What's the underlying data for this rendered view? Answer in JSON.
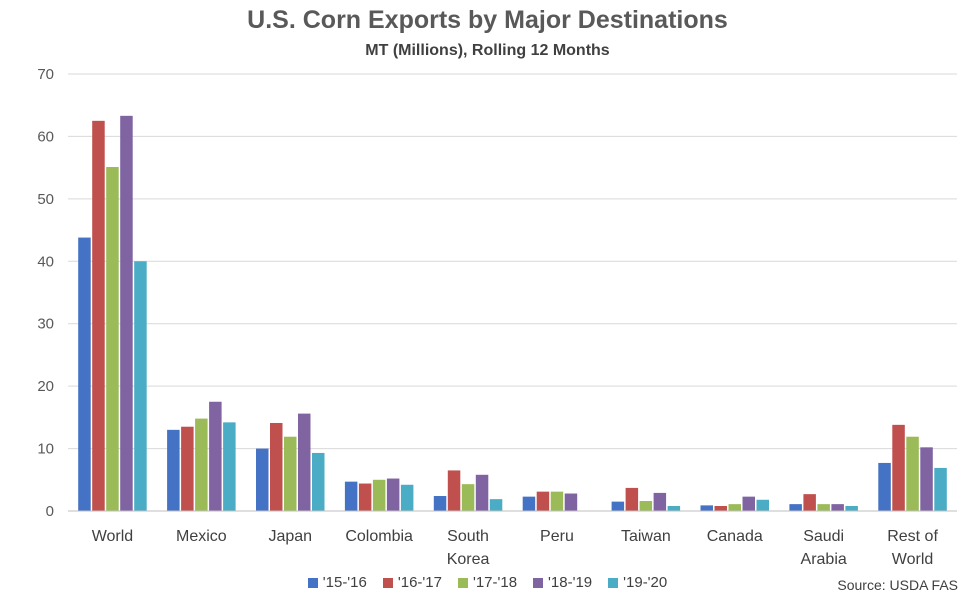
{
  "chart_data": {
    "type": "bar",
    "title": "U.S. Corn Exports by Major Destinations",
    "subtitle": "MT (Millions), Rolling 12 Months",
    "categories": [
      [
        "World"
      ],
      [
        "Mexico"
      ],
      [
        "Japan"
      ],
      [
        "Colombia"
      ],
      [
        "South",
        "Korea"
      ],
      [
        "Peru"
      ],
      [
        "Taiwan"
      ],
      [
        "Canada"
      ],
      [
        "Saudi",
        "Arabia"
      ],
      [
        "Rest of",
        "World"
      ]
    ],
    "ylim": [
      0,
      70
    ],
    "yticks": [
      0,
      10,
      20,
      30,
      40,
      50,
      60,
      70
    ],
    "grid": true,
    "legend_position": "bottom",
    "series": [
      {
        "name": "'15-'16",
        "color": "#4472C4",
        "values": [
          43.8,
          13.0,
          10.0,
          4.7,
          2.4,
          2.3,
          1.5,
          0.9,
          1.1,
          7.7
        ]
      },
      {
        "name": "'16-'17",
        "color": "#C0504D",
        "values": [
          62.5,
          13.5,
          14.1,
          4.4,
          6.5,
          3.1,
          3.7,
          0.8,
          2.7,
          13.8
        ]
      },
      {
        "name": "'17-'18",
        "color": "#9BBB59",
        "values": [
          55.1,
          14.8,
          11.9,
          5.0,
          4.3,
          3.1,
          1.6,
          1.1,
          1.1,
          11.9
        ]
      },
      {
        "name": "'18-'19",
        "color": "#8064A2",
        "values": [
          63.3,
          17.5,
          15.6,
          5.2,
          5.8,
          2.8,
          2.9,
          2.3,
          1.1,
          10.2
        ]
      },
      {
        "name": "'19-'20",
        "color": "#4BACC6",
        "values": [
          40.0,
          14.2,
          9.3,
          4.2,
          1.9,
          null,
          0.8,
          1.8,
          0.8,
          6.9
        ]
      }
    ],
    "source": "Source: USDA FAS"
  }
}
